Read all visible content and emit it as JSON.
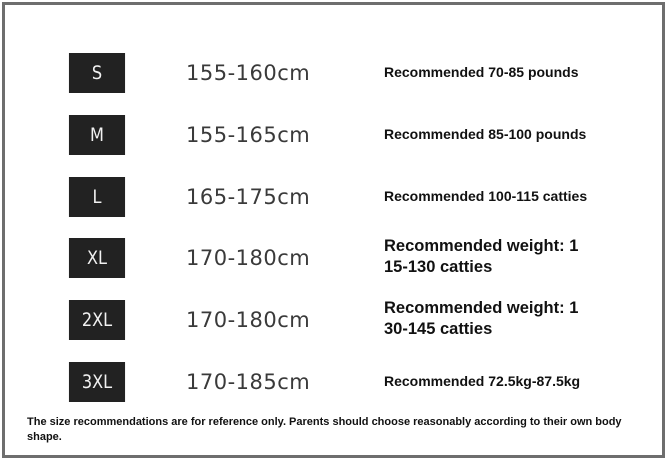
{
  "sizes": [
    {
      "size": "S",
      "height": "155-160cm",
      "recommendation": "Recommended 70-85 pounds"
    },
    {
      "size": "M",
      "height": "155-165cm",
      "recommendation": "Recommended 85-100 pounds"
    },
    {
      "size": "L",
      "height": "165-175cm",
      "recommendation": "Recommended 100-115 catties"
    },
    {
      "size": "XL",
      "height": "170-180cm",
      "recommendation": "Recommended weight: 1 15-130 catties"
    },
    {
      "size": "2XL",
      "height": "170-180cm",
      "recommendation": "Recommended weight: 1 30-145 catties"
    },
    {
      "size": "3XL",
      "height": "170-185cm",
      "recommendation": "Recommended 72.5kg-87.5kg"
    }
  ],
  "note": "The size recommendations are for reference only. Parents should choose reasonably according to their own body shape."
}
